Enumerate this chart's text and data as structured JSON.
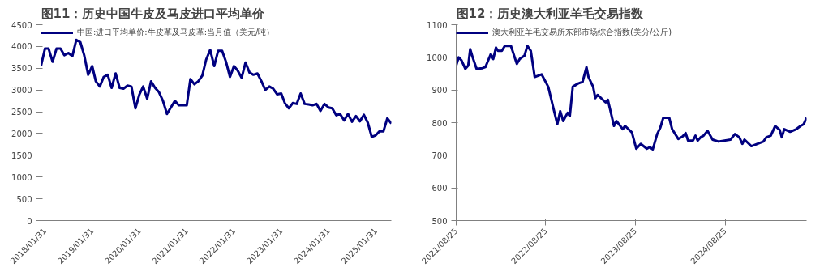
{
  "chart_data": [
    {
      "type": "line",
      "title": "图11：历史中国牛皮及马皮进口平均单价",
      "legend": "top left",
      "grid": false,
      "xlim": [
        "2018-01",
        "2025-06"
      ],
      "ylim": [
        0,
        4500
      ],
      "yticks": [
        0,
        500,
        1000,
        1500,
        2000,
        2500,
        3000,
        3500,
        4000,
        4500
      ],
      "xticks": [
        {
          "value": "2018-01-31",
          "label": "2018/01/31"
        },
        {
          "value": "2019-01-31",
          "label": "2019/01/31"
        },
        {
          "value": "2020-01-31",
          "label": "2020/01/31"
        },
        {
          "value": "2021-01-31",
          "label": "2021/01/31"
        },
        {
          "value": "2022-01-31",
          "label": "2022/01/31"
        },
        {
          "value": "2023-01-31",
          "label": "2023/01/31"
        },
        {
          "value": "2024-01-31",
          "label": "2024/01/31"
        },
        {
          "value": "2025-01-31",
          "label": "2025/01/31"
        }
      ],
      "x": [
        "2018-01",
        "2018-02",
        "2018-03",
        "2018-04",
        "2018-05",
        "2018-06",
        "2018-07",
        "2018-08",
        "2018-09",
        "2018-10",
        "2018-11",
        "2018-12",
        "2019-01",
        "2019-02",
        "2019-03",
        "2019-04",
        "2019-05",
        "2019-06",
        "2019-07",
        "2019-08",
        "2019-09",
        "2019-10",
        "2019-11",
        "2019-12",
        "2020-01",
        "2020-02",
        "2020-03",
        "2020-04",
        "2020-05",
        "2020-06",
        "2020-07",
        "2020-08",
        "2020-09",
        "2020-10",
        "2020-11",
        "2020-12",
        "2021-01",
        "2021-02",
        "2021-03",
        "2021-04",
        "2021-05",
        "2021-06",
        "2021-07",
        "2021-08",
        "2021-09",
        "2021-10",
        "2021-11",
        "2021-12",
        "2022-01",
        "2022-02",
        "2022-03",
        "2022-04",
        "2022-05",
        "2022-06",
        "2022-07",
        "2022-08",
        "2022-09",
        "2022-10",
        "2022-11",
        "2022-12",
        "2023-01",
        "2023-02",
        "2023-03",
        "2023-04",
        "2023-05",
        "2023-06",
        "2023-07",
        "2023-08",
        "2023-09",
        "2023-10",
        "2023-11",
        "2023-12",
        "2024-01",
        "2024-02",
        "2024-03",
        "2024-04",
        "2024-05",
        "2024-06",
        "2024-07",
        "2024-08",
        "2024-09",
        "2024-10",
        "2024-11",
        "2024-12",
        "2025-01",
        "2025-02",
        "2025-03",
        "2025-04",
        "2025-05",
        "2025-06"
      ],
      "series": [
        {
          "name": "中国:进口平均单价:牛皮革及马皮革:当月值（美元/吨）",
          "color": "#000080",
          "values": [
            3550,
            3950,
            3950,
            3650,
            3950,
            3950,
            3800,
            3850,
            3780,
            4150,
            4100,
            3800,
            3350,
            3550,
            3200,
            3080,
            3300,
            3350,
            3050,
            3380,
            3050,
            3030,
            3100,
            3080,
            2580,
            2900,
            3080,
            2800,
            3200,
            3050,
            2950,
            2750,
            2450,
            2600,
            2750,
            2650,
            2650,
            2650,
            3250,
            3130,
            3200,
            3330,
            3700,
            3920,
            3550,
            3900,
            3900,
            3650,
            3300,
            3550,
            3450,
            3280,
            3630,
            3400,
            3350,
            3380,
            3200,
            3000,
            3080,
            3030,
            2900,
            2920,
            2700,
            2580,
            2700,
            2680,
            2920,
            2680,
            2670,
            2650,
            2680,
            2520,
            2680,
            2600,
            2580,
            2420,
            2450,
            2300,
            2450,
            2270,
            2400,
            2280,
            2430,
            2250,
            1920,
            1960,
            2050,
            2050,
            2350,
            2230
          ]
        }
      ]
    },
    {
      "type": "line",
      "title": "图12：历史澳大利亚羊毛交易指数",
      "legend": "top left",
      "grid": false,
      "xlim": [
        "2021-08-25",
        "2025-07-23"
      ],
      "ylim": [
        500,
        1100
      ],
      "yticks": [
        500,
        600,
        700,
        800,
        900,
        1000,
        1100
      ],
      "xticks": [
        {
          "value": "2021-08-25",
          "label": "2021/08/25"
        },
        {
          "value": "2022-08-25",
          "label": "2022/08/25"
        },
        {
          "value": "2023-08-25",
          "label": "2023/08/25"
        },
        {
          "value": "2024-08-25",
          "label": "2024/08/25"
        }
      ],
      "x": [
        "2021-08-25",
        "2021-09-04",
        "2021-09-16",
        "2021-10-01",
        "2021-10-13",
        "2021-10-21",
        "2021-10-31",
        "2021-11-16",
        "2021-12-10",
        "2021-12-22",
        "2022-01-13",
        "2022-01-23",
        "2022-02-03",
        "2022-02-11",
        "2022-02-27",
        "2022-03-11",
        "2022-04-05",
        "2022-04-29",
        "2022-05-11",
        "2022-05-30",
        "2022-06-11",
        "2022-06-25",
        "2022-07-11",
        "2022-08-08",
        "2022-09-04",
        "2022-10-11",
        "2022-10-23",
        "2022-11-04",
        "2022-11-22",
        "2022-12-01",
        "2022-12-13",
        "2023-01-04",
        "2023-01-22",
        "2023-02-07",
        "2023-02-15",
        "2023-03-06",
        "2023-03-15",
        "2023-03-24",
        "2023-04-26",
        "2023-05-05",
        "2023-05-30",
        "2023-06-09",
        "2023-07-05",
        "2023-07-14",
        "2023-08-11",
        "2023-08-29",
        "2023-09-16",
        "2023-10-11",
        "2023-10-23",
        "2023-11-04",
        "2023-11-22",
        "2023-12-05",
        "2023-12-17",
        "2024-01-10",
        "2024-01-22",
        "2024-02-16",
        "2024-03-05",
        "2024-03-17",
        "2024-03-27",
        "2024-04-16",
        "2024-04-26",
        "2024-05-05",
        "2024-05-17",
        "2024-05-29",
        "2024-06-14",
        "2024-07-05",
        "2024-07-29",
        "2024-09-16",
        "2024-10-04",
        "2024-10-22",
        "2024-11-03",
        "2024-11-12",
        "2024-12-10",
        "2025-01-28",
        "2025-02-09",
        "2025-02-27",
        "2025-03-17",
        "2025-04-04",
        "2025-04-13",
        "2025-04-23",
        "2025-05-17",
        "2025-06-11",
        "2025-06-29",
        "2025-07-11",
        "2025-07-23"
      ],
      "series": [
        {
          "name": "澳大利亚羊毛交易所东部市场综合指数(美分/公斤)",
          "color": "#000080",
          "values": [
            975,
            1000,
            990,
            965,
            975,
            1025,
            1000,
            965,
            967,
            970,
            1010,
            995,
            1030,
            1020,
            1020,
            1035,
            1035,
            980,
            995,
            1005,
            1035,
            1020,
            940,
            948,
            910,
            795,
            835,
            805,
            830,
            820,
            910,
            920,
            925,
            970,
            940,
            910,
            875,
            885,
            862,
            870,
            790,
            805,
            780,
            790,
            770,
            720,
            735,
            720,
            725,
            718,
            765,
            785,
            815,
            815,
            780,
            750,
            758,
            768,
            745,
            745,
            760,
            745,
            755,
            760,
            775,
            748,
            742,
            748,
            765,
            755,
            735,
            748,
            728,
            742,
            755,
            760,
            790,
            778,
            755,
            780,
            772,
            780,
            790,
            795,
            815
          ]
        }
      ]
    }
  ]
}
